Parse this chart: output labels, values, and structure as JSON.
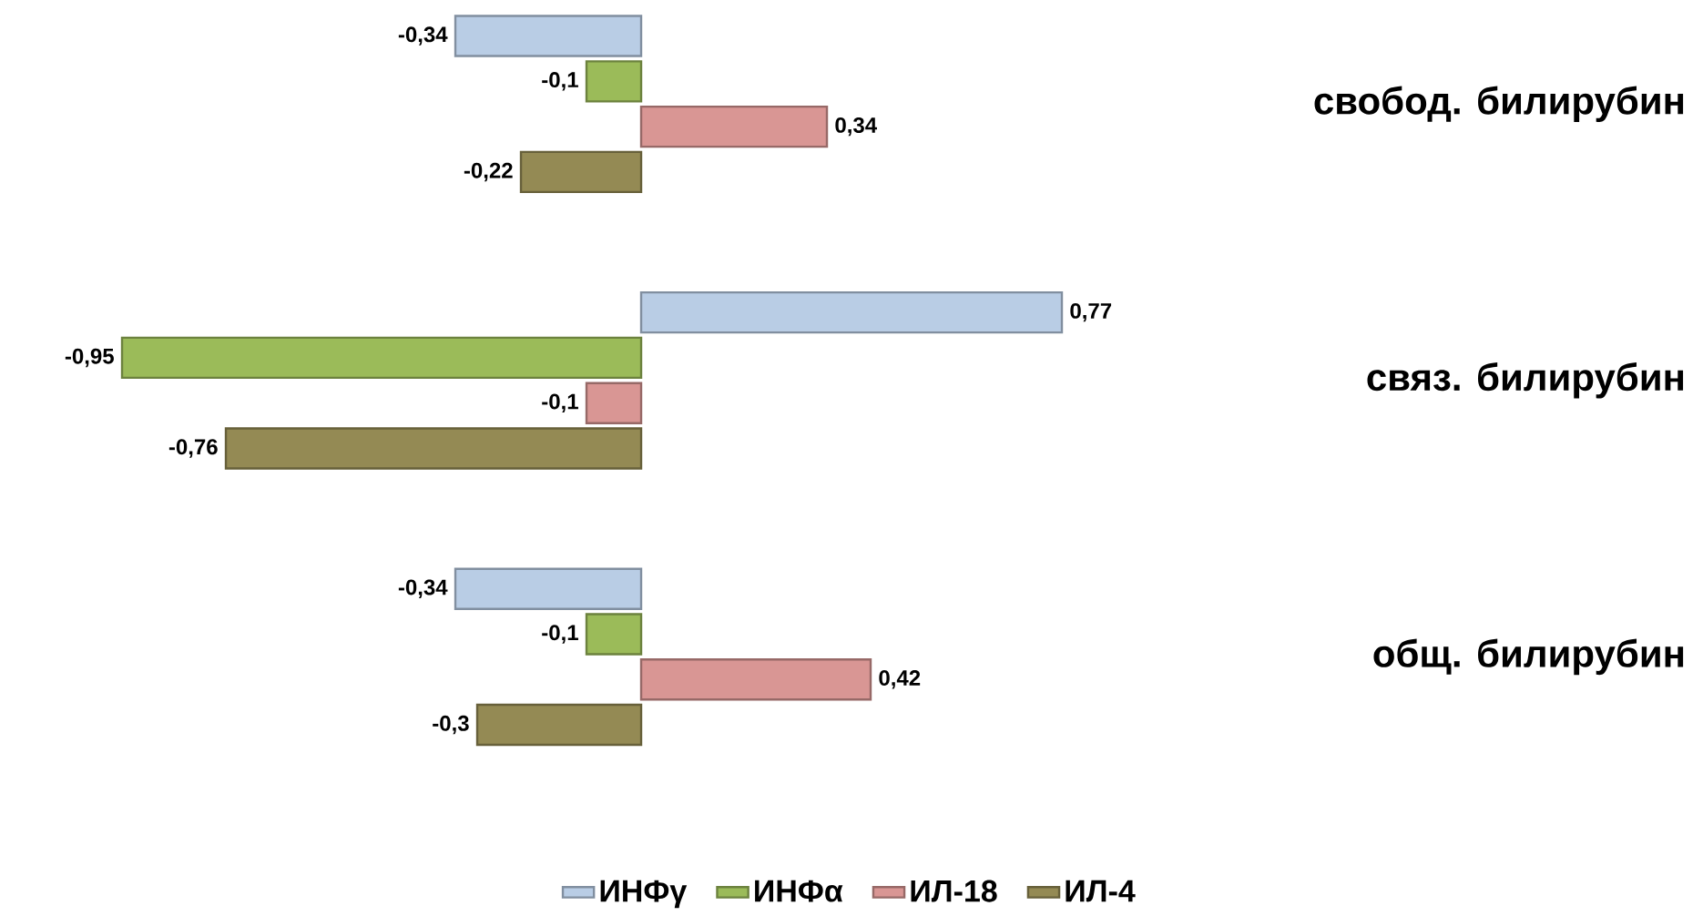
{
  "chart_data": {
    "type": "bar",
    "orientation": "horizontal",
    "categories": [
      "свобод. билирубин",
      "связ. билирубин",
      "общ. билирубин"
    ],
    "series": [
      {
        "name": "ИНФγ",
        "color": "#b9cde5",
        "values": [
          -0.34,
          0.77,
          -0.34
        ],
        "value_labels": [
          "-0,34",
          "0,77",
          "-0,34"
        ]
      },
      {
        "name": "ИНФα",
        "color": "#9bbb59",
        "values": [
          -0.1,
          -0.95,
          -0.1
        ],
        "value_labels": [
          "-0,1",
          "-0,95",
          "-0,1"
        ]
      },
      {
        "name": "ИЛ-18",
        "color": "#d99694",
        "values": [
          0.34,
          -0.1,
          0.42
        ],
        "value_labels": [
          "0,34",
          "-0,1",
          "0,42"
        ]
      },
      {
        "name": "ИЛ-4",
        "color": "#948a54",
        "values": [
          -0.22,
          -0.76,
          -0.3
        ],
        "value_labels": [
          "-0,22",
          "-0,76",
          "-0,3"
        ]
      }
    ],
    "legend": "bottom"
  }
}
